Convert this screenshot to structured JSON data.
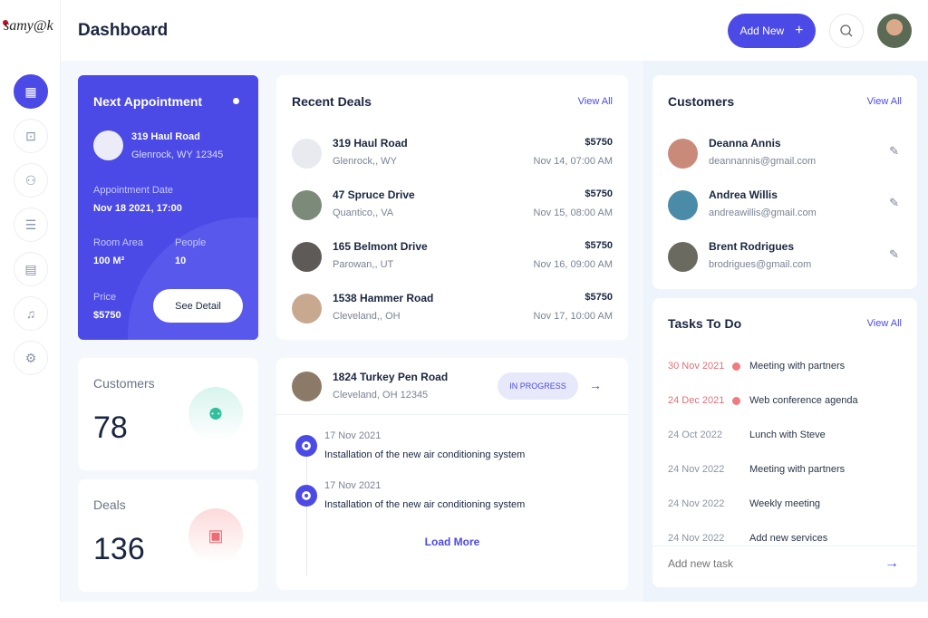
{
  "brand": {
    "logo_text": "samy@k"
  },
  "header": {
    "title": "Dashboard",
    "add_new": "Add New",
    "add_icon": "+"
  },
  "sidebar": {
    "items": [
      {
        "icon": "dashboard-icon",
        "glyph": "▦"
      },
      {
        "icon": "briefcase-icon",
        "glyph": "⊡"
      },
      {
        "icon": "users-icon",
        "glyph": "⚇"
      },
      {
        "icon": "checklist-icon",
        "glyph": "☰"
      },
      {
        "icon": "calendar-icon",
        "glyph": "▤"
      },
      {
        "icon": "bell-icon",
        "glyph": "♫"
      },
      {
        "icon": "gear-icon",
        "glyph": "⚙"
      }
    ]
  },
  "appointment": {
    "title": "Next Appointment",
    "name": "319 Haul  Road",
    "address": "Glenrock, WY 12345",
    "date_label": "Appointment Date",
    "date": "Nov 18 2021, 17:00",
    "room_label": "Room Area",
    "room": "100  M²",
    "people_label": "People",
    "people": "10",
    "price_label": "Price",
    "price": "$5750",
    "button": "See Detail"
  },
  "stats": {
    "customers_label": "Customers",
    "customers": "78",
    "deals_label": "Deals",
    "deals": "136"
  },
  "recent_deals": {
    "title": "Recent Deals",
    "view_all": "View All",
    "items": [
      {
        "name": "319 Haul Road",
        "location": "Glenrock,, WY",
        "price": "$5750",
        "date": "Nov 14, 07:00 AM"
      },
      {
        "name": "47 Spruce Drive",
        "location": "Quantico,, VA",
        "price": "$5750",
        "date": "Nov 15, 08:00 AM"
      },
      {
        "name": "165 Belmont Drive",
        "location": "Parowan,, UT",
        "price": "$5750",
        "date": "Nov 16, 09:00 AM"
      },
      {
        "name": "1538 Hammer Road",
        "location": "Cleveland,, OH",
        "price": "$5750",
        "date": "Nov 17, 10:00 AM"
      }
    ]
  },
  "deal_detail": {
    "name": "1824 Turkey Pen Road",
    "address": "Cleveland, OH 12345",
    "status": "IN PROGRESS",
    "timeline": [
      {
        "date": "17 Nov 2021",
        "text": "Installation of the new air conditioning system"
      },
      {
        "date": "17 Nov 2021",
        "text": "Installation of the new air conditioning system"
      }
    ],
    "load_more": "Load More"
  },
  "customers": {
    "title": "Customers",
    "view_all": "View All",
    "items": [
      {
        "name": "Deanna Annis",
        "email": "deannannis@gmail.com"
      },
      {
        "name": "Andrea Willis",
        "email": "andreawillis@gmail.com"
      },
      {
        "name": "Brent Rodrigues",
        "email": "brodrigues@gmail.com"
      }
    ]
  },
  "tasks": {
    "title": "Tasks To Do",
    "view_all": "View All",
    "items": [
      {
        "date": "30 Nov 2021",
        "name": "Meeting with partners",
        "overdue": true
      },
      {
        "date": "24 Dec 2021",
        "name": "Web conference agenda",
        "overdue": true
      },
      {
        "date": "24 Oct 2022",
        "name": "Lunch with Steve",
        "overdue": false
      },
      {
        "date": "24 Nov 2022",
        "name": "Meeting with partners",
        "overdue": false
      },
      {
        "date": "24 Nov 2022",
        "name": "Weekly meeting",
        "overdue": false
      },
      {
        "date": "24 Nov 2022",
        "name": "Add new services",
        "overdue": false
      }
    ],
    "add_placeholder": "Add new task"
  },
  "colors": {
    "accent": "#4b4ae6",
    "overdue": "#e0707a"
  }
}
